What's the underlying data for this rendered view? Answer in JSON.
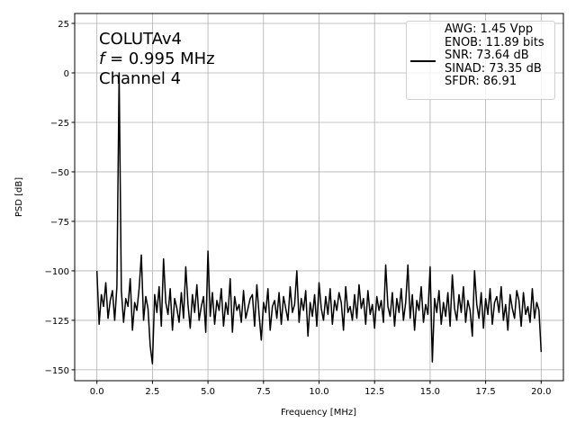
{
  "chart_data": {
    "type": "line",
    "xlabel": "Frequency [MHz]",
    "ylabel": "PSD [dB]",
    "annotation": {
      "line1": "COLUTAv4",
      "freq_symbol": "f",
      "freq": " = 0.995 MHz",
      "line3": "Channel 4"
    },
    "xlim": [
      -1,
      21
    ],
    "ylim": [
      -155.5,
      30
    ],
    "xticks": [
      {
        "value": 0,
        "label": "0.0"
      },
      2.5,
      {
        "value": 5,
        "label": "5.0"
      },
      7.5,
      {
        "value": 10,
        "label": "10.0"
      },
      12.5,
      {
        "value": 15,
        "label": "15.0"
      },
      17.5,
      {
        "value": 20,
        "label": "20.0"
      }
    ],
    "yticks": [
      25,
      0,
      {
        "value": -25,
        "label": "−25"
      },
      {
        "value": -50,
        "label": "−50"
      },
      {
        "value": -75,
        "label": "−75"
      },
      {
        "value": -100,
        "label": "−100"
      },
      {
        "value": -125,
        "label": "−125"
      },
      {
        "value": -150,
        "label": "−150"
      }
    ],
    "grid": true,
    "legend": "upper right",
    "x": [
      0,
      0.1,
      0.2,
      0.3,
      0.4,
      0.5,
      0.6,
      0.7,
      0.8,
      0.9,
      1,
      1.1,
      1.2,
      1.3,
      1.4,
      1.5,
      1.6,
      1.7,
      1.8,
      1.9,
      2,
      2.1,
      2.2,
      2.3,
      2.4,
      2.5,
      2.6,
      2.7,
      2.8,
      2.9,
      3,
      3.1,
      3.2,
      3.3,
      3.4,
      3.5,
      3.6,
      3.7,
      3.8,
      3.9,
      4,
      4.1,
      4.2,
      4.3,
      4.4,
      4.5,
      4.6,
      4.7,
      4.8,
      4.9,
      5,
      5.1,
      5.2,
      5.3,
      5.4,
      5.5,
      5.6,
      5.7,
      5.8,
      5.9,
      6,
      6.1,
      6.2,
      6.3,
      6.4,
      6.5,
      6.6,
      6.7,
      6.8,
      6.9,
      7,
      7.1,
      7.2,
      7.3,
      7.4,
      7.5,
      7.6,
      7.7,
      7.8,
      7.9,
      8,
      8.1,
      8.2,
      8.3,
      8.4,
      8.5,
      8.6,
      8.7,
      8.8,
      8.9,
      9,
      9.1,
      9.2,
      9.3,
      9.4,
      9.5,
      9.6,
      9.7,
      9.8,
      9.9,
      10,
      10.1,
      10.2,
      10.3,
      10.4,
      10.5,
      10.6,
      10.7,
      10.8,
      10.9,
      11,
      11.1,
      11.2,
      11.3,
      11.4,
      11.5,
      11.6,
      11.7,
      11.8,
      11.9,
      12,
      12.1,
      12.2,
      12.3,
      12.4,
      12.5,
      12.6,
      12.7,
      12.8,
      12.9,
      13,
      13.1,
      13.2,
      13.3,
      13.4,
      13.5,
      13.6,
      13.7,
      13.8,
      13.9,
      14,
      14.1,
      14.2,
      14.3,
      14.4,
      14.5,
      14.6,
      14.7,
      14.8,
      14.9,
      15,
      15.1,
      15.2,
      15.3,
      15.4,
      15.5,
      15.6,
      15.7,
      15.8,
      15.9,
      16,
      16.1,
      16.2,
      16.3,
      16.4,
      16.5,
      16.6,
      16.7,
      16.8,
      16.9,
      17,
      17.1,
      17.2,
      17.3,
      17.4,
      17.5,
      17.6,
      17.7,
      17.8,
      17.9,
      18,
      18.1,
      18.2,
      18.3,
      18.4,
      18.5,
      18.6,
      18.7,
      18.8,
      18.9,
      19,
      19.1,
      19.2,
      19.3,
      19.4,
      19.5,
      19.6,
      19.7,
      19.8,
      19.9,
      20
    ],
    "series": [
      {
        "name": "AWG: 1.45 Vpp\nENOB: 11.89 bits\nSNR: 73.64 dB\nSINAD: 73.35 dB\nSFDR: 86.91",
        "color": "#000000",
        "values": [
          -100,
          -127,
          -112,
          -118,
          -106,
          -124,
          -115,
          -110,
          -125,
          -108,
          0,
          -110,
          -126,
          -114,
          -118,
          -104,
          -130,
          -116,
          -120,
          -109,
          -92,
          -125,
          -113,
          -119,
          -138,
          -147,
          -112,
          -121,
          -108,
          -128,
          -94,
          -116,
          -122,
          -109,
          -130,
          -114,
          -119,
          -126,
          -111,
          -124,
          -98,
          -117,
          -129,
          -112,
          -121,
          -107,
          -125,
          -118,
          -113,
          -131,
          -90,
          -123,
          -111,
          -127,
          -115,
          -120,
          -109,
          -128,
          -116,
          -122,
          -104,
          -131,
          -113,
          -120,
          -117,
          -126,
          -110,
          -124,
          -119,
          -114,
          -112,
          -128,
          -107,
          -122,
          -135,
          -116,
          -121,
          -109,
          -130,
          -118,
          -115,
          -124,
          -111,
          -127,
          -113,
          -119,
          -125,
          -108,
          -121,
          -117,
          -100,
          -126,
          -114,
          -120,
          -110,
          -133,
          -116,
          -123,
          -112,
          -128,
          -106,
          -119,
          -125,
          -113,
          -122,
          -109,
          -127,
          -115,
          -120,
          -111,
          -116,
          -130,
          -108,
          -121,
          -118,
          -125,
          -112,
          -124,
          -107,
          -119,
          -114,
          -127,
          -110,
          -122,
          -117,
          -129,
          -113,
          -120,
          -115,
          -126,
          -97,
          -118,
          -123,
          -111,
          -128,
          -114,
          -121,
          -109,
          -125,
          -116,
          -97,
          -124,
          -112,
          -130,
          -115,
          -120,
          -108,
          -126,
          -117,
          -122,
          -98,
          -146,
          -114,
          -121,
          -110,
          -127,
          -116,
          -123,
          -111,
          -128,
          -102,
          -119,
          -125,
          -112,
          -121,
          -108,
          -126,
          -115,
          -120,
          -133,
          -100,
          -117,
          -124,
          -111,
          -129,
          -114,
          -122,
          -109,
          -127,
          -116,
          -113,
          -121,
          -108,
          -125,
          -117,
          -130,
          -112,
          -119,
          -124,
          -110,
          -115,
          -128,
          -111,
          -122,
          -118,
          -126,
          -109,
          -124,
          -116,
          -120,
          -141
        ]
      }
    ]
  }
}
